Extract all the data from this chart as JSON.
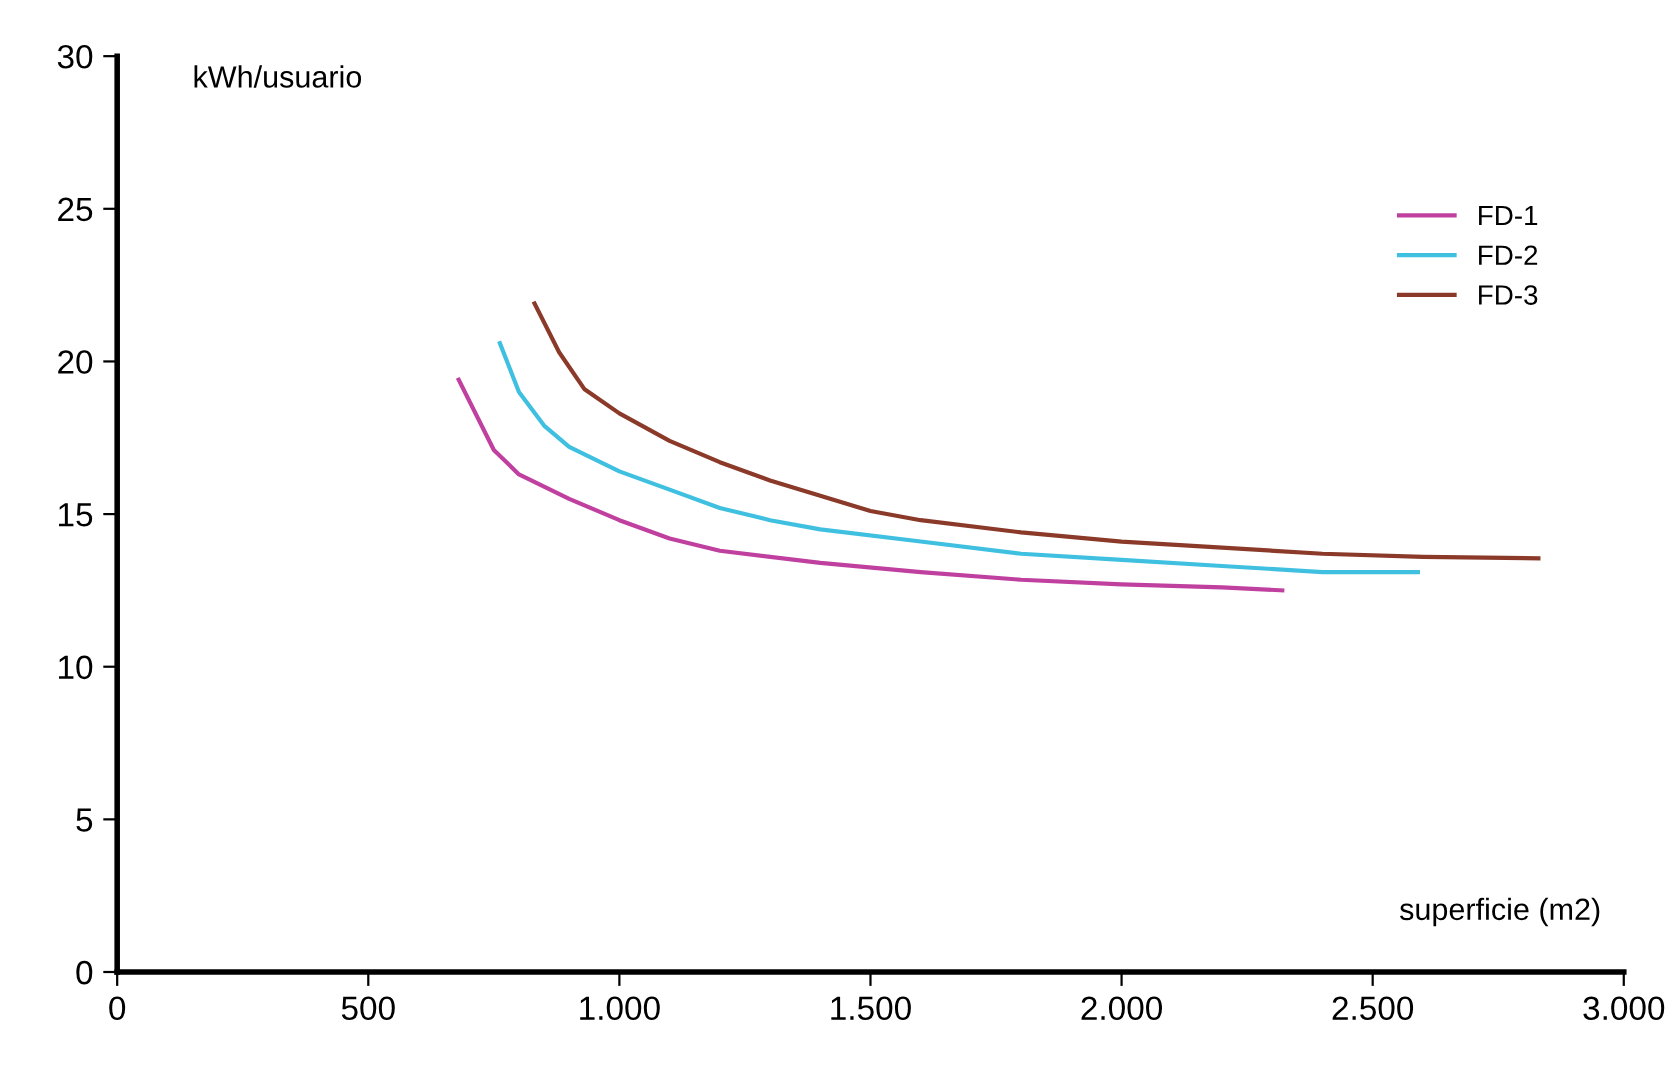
{
  "chart_data": {
    "type": "line",
    "xlabel": "superficie (m2)",
    "ylabel": "kWh/usuario",
    "xlim": [
      0,
      3000
    ],
    "ylim": [
      0,
      30
    ],
    "xticks": [
      0,
      500,
      {
        "value": 1000,
        "label": "1.000"
      },
      {
        "value": 1500,
        "label": "1.500"
      },
      {
        "value": 2000,
        "label": "2.000"
      },
      {
        "value": 2500,
        "label": "2.500"
      },
      {
        "value": 3000,
        "label": "3.000"
      }
    ],
    "yticks": [
      0,
      5,
      10,
      15,
      20,
      25,
      30
    ],
    "grid": false,
    "legend": "right",
    "marker": "none",
    "line_style": "solid",
    "series": [
      {
        "name": "FD-1",
        "color": "#c040a0",
        "x": [
          680,
          750,
          800,
          900,
          1000,
          1100,
          1200,
          1400,
          1600,
          1800,
          2000,
          2200,
          2320
        ],
        "values": [
          19.4,
          17.1,
          16.3,
          15.5,
          14.8,
          14.2,
          13.8,
          13.4,
          13.1,
          12.85,
          12.7,
          12.6,
          12.5
        ]
      },
      {
        "name": "FD-2",
        "color": "#40c0e0",
        "x": [
          762,
          800,
          850,
          900,
          1000,
          1100,
          1200,
          1300,
          1400,
          1600,
          1800,
          2000,
          2200,
          2400,
          2590
        ],
        "values": [
          20.6,
          19.0,
          17.9,
          17.2,
          16.4,
          15.8,
          15.2,
          14.8,
          14.5,
          14.1,
          13.7,
          13.5,
          13.3,
          13.1,
          13.1
        ]
      },
      {
        "name": "FD-3",
        "color": "#8b3a2a",
        "x": [
          831,
          880,
          930,
          1000,
          1100,
          1200,
          1300,
          1400,
          1500,
          1600,
          1800,
          2000,
          2200,
          2400,
          2600,
          2830
        ],
        "values": [
          21.9,
          20.3,
          19.1,
          18.3,
          17.4,
          16.7,
          16.1,
          15.6,
          15.1,
          14.8,
          14.4,
          14.1,
          13.9,
          13.7,
          13.6,
          13.55
        ]
      }
    ]
  }
}
